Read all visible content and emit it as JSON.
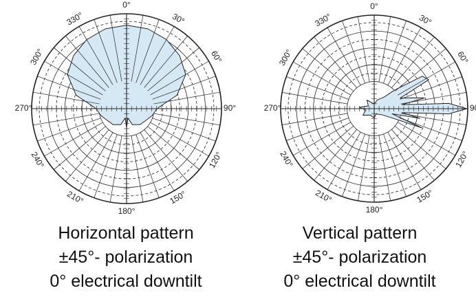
{
  "colors": {
    "lobe_fill": "#d5e9f4",
    "lobe_stroke": "#222222",
    "grid": "#222222",
    "background": "#ffffff"
  },
  "angle_labels": [
    "0°",
    "30°",
    "60°",
    "90°",
    "120°",
    "150°",
    "180°",
    "210°",
    "240°",
    "270°",
    "300°",
    "330°"
  ],
  "plots": {
    "horizontal": {
      "caption": [
        "Horizontal pattern",
        "±45°- polarization",
        "0° electrical downtilt"
      ],
      "pattern_points": [
        {
          "angle": 0,
          "r": 0.88
        },
        {
          "angle": 15,
          "r": 0.87
        },
        {
          "angle": 30,
          "r": 0.84
        },
        {
          "angle": 45,
          "r": 0.79
        },
        {
          "angle": 60,
          "r": 0.72
        },
        {
          "angle": 75,
          "r": 0.55
        },
        {
          "angle": 90,
          "r": 0.32
        },
        {
          "angle": 105,
          "r": 0.28
        },
        {
          "angle": 120,
          "r": 0.24
        },
        {
          "angle": 140,
          "r": 0.22
        },
        {
          "angle": 160,
          "r": 0.18
        },
        {
          "angle": 172,
          "r": 0.1
        },
        {
          "angle": 180,
          "r": 0.2
        },
        {
          "angle": 188,
          "r": 0.1
        },
        {
          "angle": 200,
          "r": 0.18
        },
        {
          "angle": 220,
          "r": 0.22
        },
        {
          "angle": 240,
          "r": 0.24
        },
        {
          "angle": 255,
          "r": 0.28
        },
        {
          "angle": 270,
          "r": 0.32
        },
        {
          "angle": 285,
          "r": 0.55
        },
        {
          "angle": 300,
          "r": 0.72
        },
        {
          "angle": 315,
          "r": 0.79
        },
        {
          "angle": 330,
          "r": 0.84
        },
        {
          "angle": 345,
          "r": 0.87
        }
      ]
    },
    "vertical": {
      "caption": [
        "Vertical pattern",
        "±45°- polarization",
        "0° electrical downtilt"
      ],
      "pattern_points": [
        {
          "angle": 0,
          "r": 0.05
        },
        {
          "angle": 20,
          "r": 0.1
        },
        {
          "angle": 40,
          "r": 0.16
        },
        {
          "angle": 48,
          "r": 0.3
        },
        {
          "angle": 56,
          "r": 0.62
        },
        {
          "angle": 62,
          "r": 0.66
        },
        {
          "angle": 68,
          "r": 0.3
        },
        {
          "angle": 74,
          "r": 0.42
        },
        {
          "angle": 78,
          "r": 0.55
        },
        {
          "angle": 82,
          "r": 0.3
        },
        {
          "angle": 86,
          "r": 0.8
        },
        {
          "angle": 90,
          "r": 0.99
        },
        {
          "angle": 94,
          "r": 0.8
        },
        {
          "angle": 98,
          "r": 0.3
        },
        {
          "angle": 102,
          "r": 0.5
        },
        {
          "angle": 106,
          "r": 0.2
        },
        {
          "angle": 112,
          "r": 0.55
        },
        {
          "angle": 118,
          "r": 0.2
        },
        {
          "angle": 130,
          "r": 0.1
        },
        {
          "angle": 160,
          "r": 0.06
        },
        {
          "angle": 180,
          "r": 0.1
        },
        {
          "angle": 210,
          "r": 0.08
        },
        {
          "angle": 240,
          "r": 0.14
        },
        {
          "angle": 260,
          "r": 0.09
        },
        {
          "angle": 275,
          "r": 0.16
        },
        {
          "angle": 295,
          "r": 0.07
        },
        {
          "angle": 320,
          "r": 0.12
        },
        {
          "angle": 345,
          "r": 0.06
        }
      ]
    }
  }
}
